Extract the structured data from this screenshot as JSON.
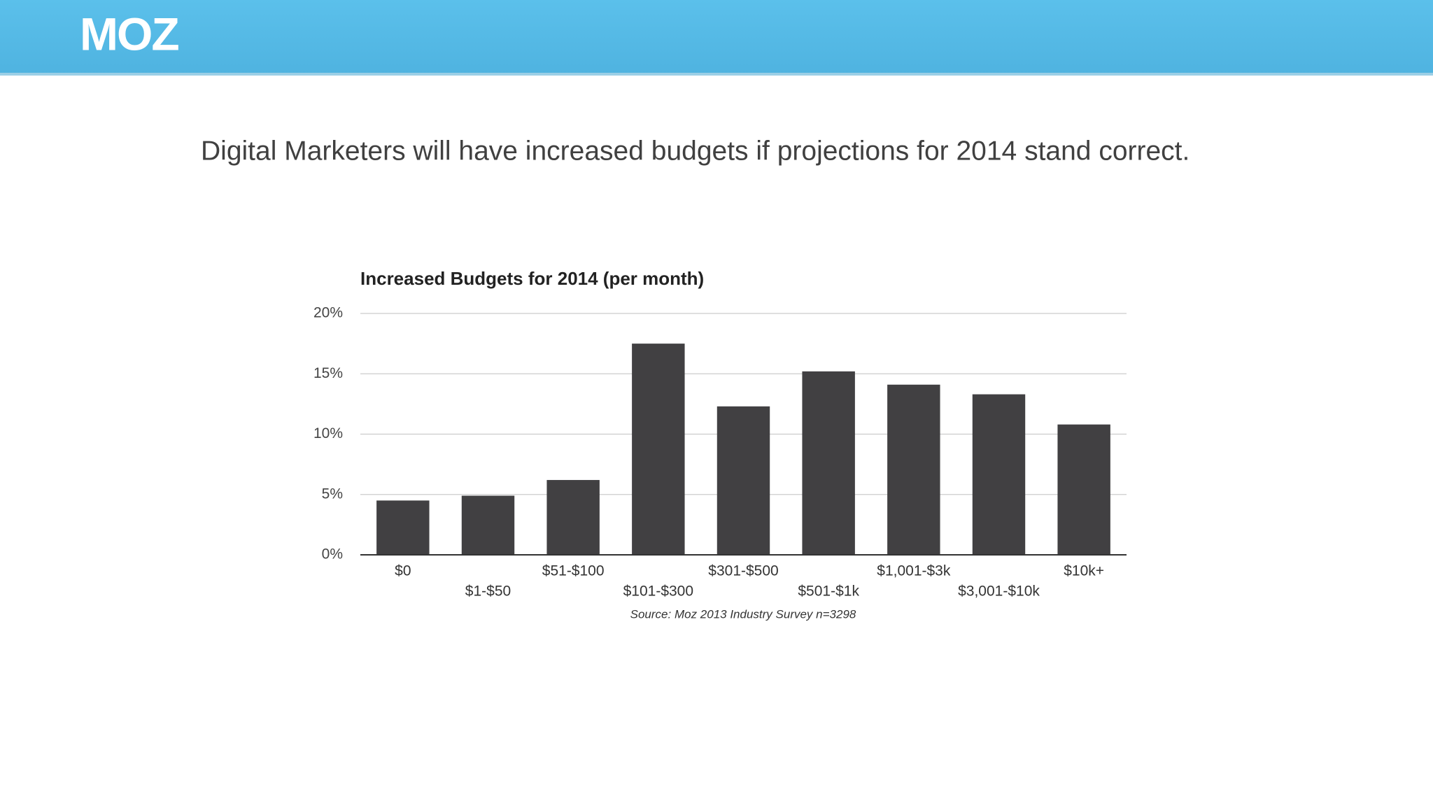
{
  "logo": "MOZ",
  "headline": "Digital Marketers will have increased budgets if projections for 2014 stand correct.",
  "chart_data": {
    "type": "bar",
    "title": "Increased Budgets for 2014 (per month)",
    "categories": [
      "$0",
      "$1-$50",
      "$51-$100",
      "$101-$300",
      "$301-$500",
      "$501-$1k",
      "$1,001-$3k",
      "$3,001-$10k",
      "$10k+"
    ],
    "values": [
      4.5,
      4.9,
      6.2,
      17.5,
      12.3,
      15.2,
      14.1,
      13.3,
      10.8
    ],
    "color": "#414042",
    "ylim": [
      0,
      20
    ],
    "yticks": [
      {
        "value": 0,
        "label": "0%"
      },
      {
        "value": 5,
        "label": "5%"
      },
      {
        "value": 10,
        "label": "10%"
      },
      {
        "value": 15,
        "label": "15%"
      },
      {
        "value": 20,
        "label": "20%"
      }
    ],
    "grid": true,
    "source": "Source: Moz 2013 Industry Survey n=3298"
  }
}
